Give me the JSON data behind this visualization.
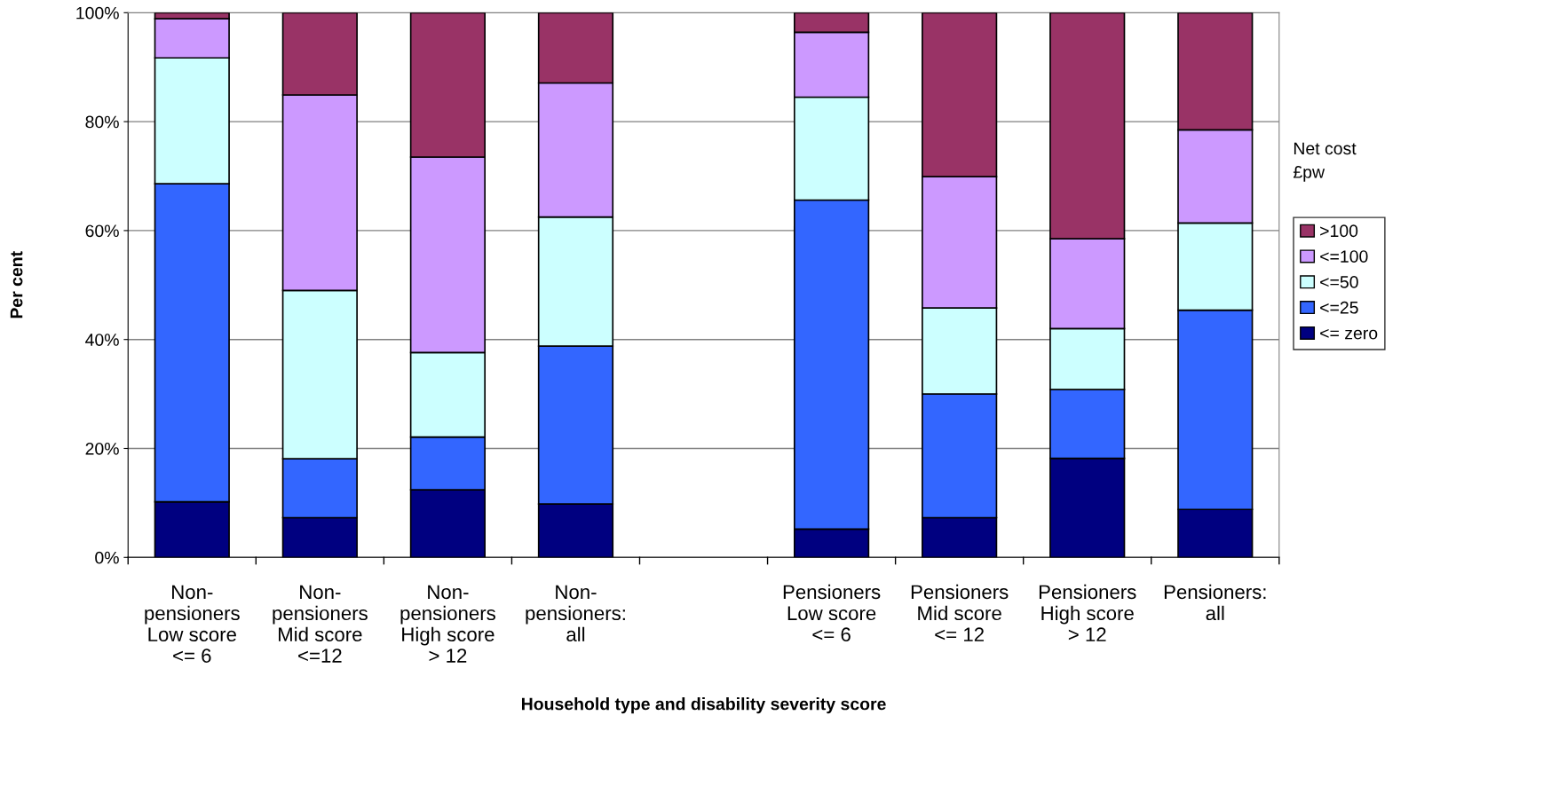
{
  "chart_data": {
    "type": "bar",
    "stacked": true,
    "xlabel": "Household type and disability severity score",
    "ylabel": "Per cent",
    "legend_title": "Net cost\n£pw",
    "categories": [
      "Non-\npensioners\nLow score\n<= 6",
      "Non-\npensioners\nMid score\n<=12",
      "Non-\npensioners\nHigh score\n> 12",
      "Non-\npensioners:\nall",
      null,
      "Pensioners\nLow score\n<= 6",
      "Pensioners\nMid score\n<= 12",
      "Pensioners\nHigh score\n> 12",
      "Pensioners:\nall"
    ],
    "series": [
      {
        "name": "<= zero",
        "color": "#000080",
        "values": [
          10.2,
          7.3,
          12.4,
          9.8,
          null,
          5.2,
          7.3,
          18.2,
          8.8
        ]
      },
      {
        "name": "<=25",
        "color": "#3366ff",
        "values": [
          58.4,
          10.8,
          9.7,
          29.0,
          null,
          60.4,
          22.7,
          12.6,
          36.6
        ]
      },
      {
        "name": "<=50",
        "color": "#ccffff",
        "values": [
          23.1,
          30.9,
          15.5,
          23.7,
          null,
          18.9,
          15.8,
          11.2,
          16.0
        ]
      },
      {
        "name": "<=100",
        "color": "#cc99ff",
        "values": [
          7.2,
          35.9,
          35.9,
          24.6,
          null,
          11.9,
          24.1,
          16.5,
          17.1
        ]
      },
      {
        "name": ">100",
        "color": "#993366",
        "values": [
          1.1,
          15.1,
          26.5,
          12.9,
          null,
          3.6,
          30.1,
          41.5,
          21.5
        ]
      }
    ],
    "ylim": [
      0,
      100
    ],
    "yticks": [
      {
        "value": 0,
        "label": "0%"
      },
      {
        "value": 20,
        "label": "20%"
      },
      {
        "value": 40,
        "label": "40%"
      },
      {
        "value": 60,
        "label": "60%"
      },
      {
        "value": 80,
        "label": "80%"
      },
      {
        "value": 100,
        "label": "100%"
      }
    ],
    "grid": "y",
    "legend": "right"
  }
}
